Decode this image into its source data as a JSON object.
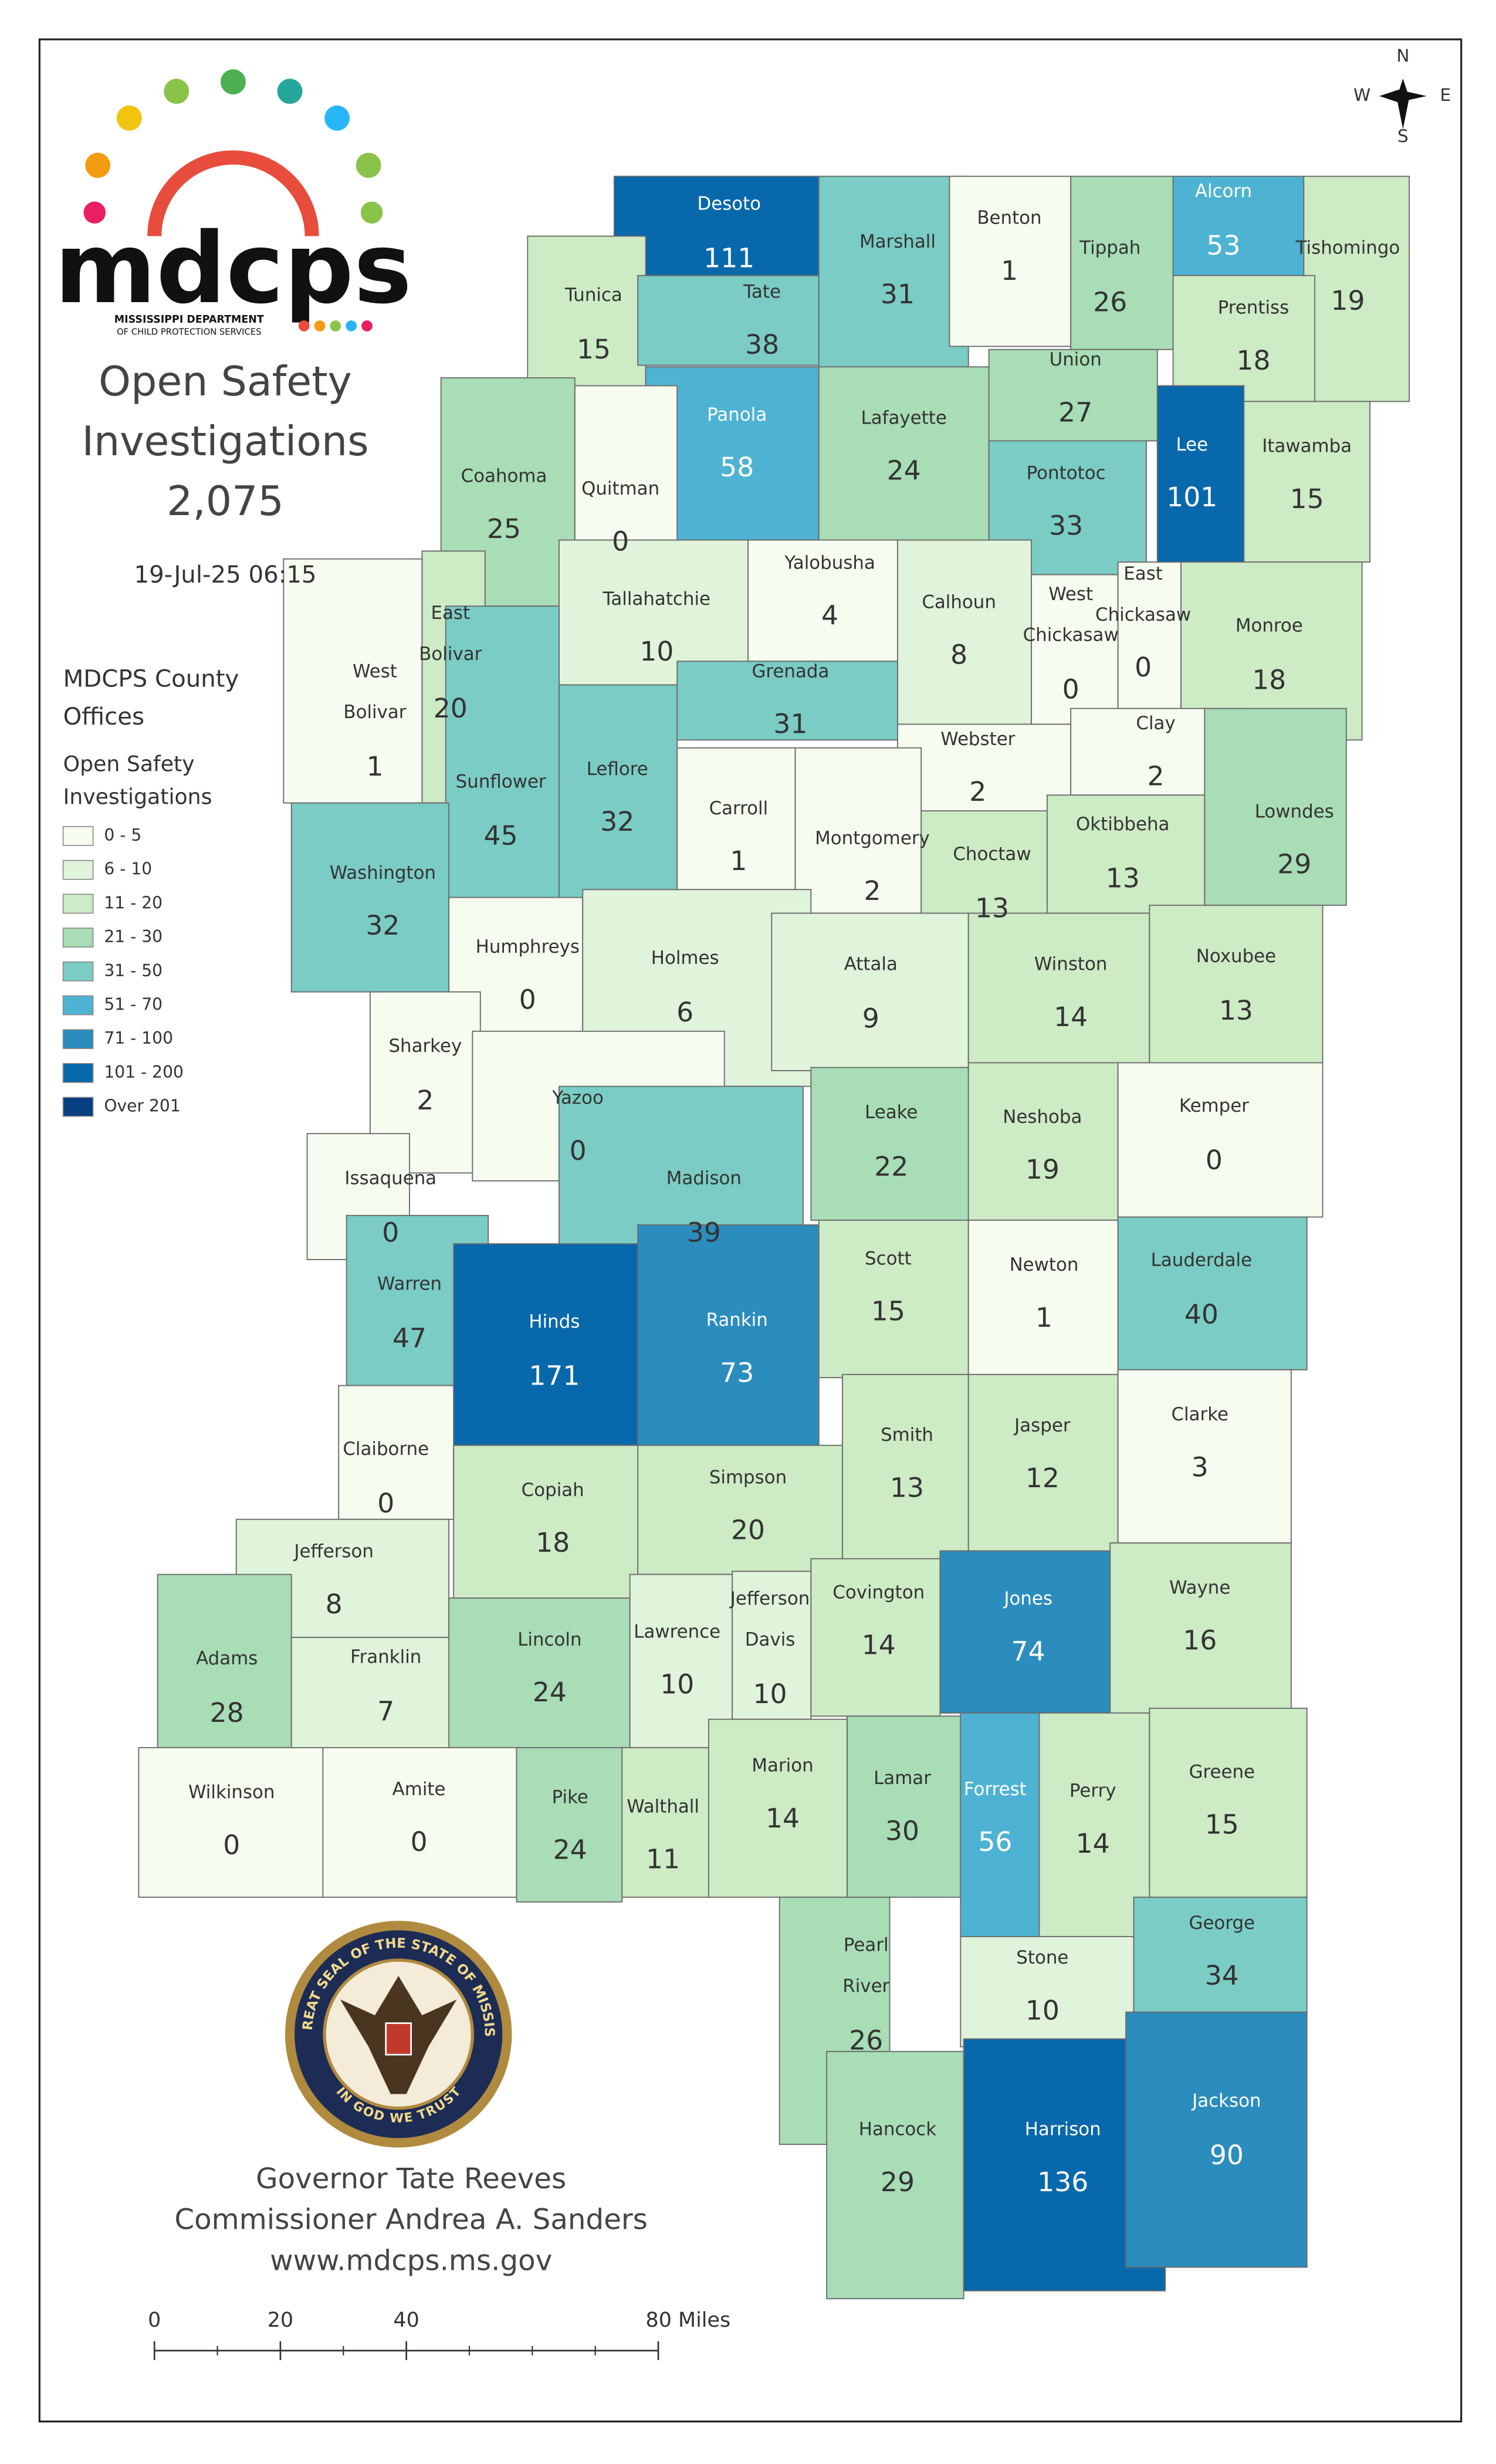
{
  "logo": {
    "text": "mdcps",
    "subtitle": [
      "MISSISSIPPI DEPARTMENT",
      "OF CHILD PROTECTION SERVICES"
    ]
  },
  "title": [
    "Open Safety",
    "Investigations"
  ],
  "total": {
    "value": 2075,
    "label": "2,075"
  },
  "timestamp": "19-Jul-25 06:15",
  "legend": {
    "heading": [
      "MDCPS County",
      "Offices"
    ],
    "subheading": [
      "Open Safety",
      "Investigations"
    ],
    "items": [
      {
        "label": "0 - 5",
        "min": 0,
        "max": 5,
        "color": "#f7fcf0"
      },
      {
        "label": "6 - 10",
        "min": 6,
        "max": 10,
        "color": "#e0f3db"
      },
      {
        "label": "11 - 20",
        "min": 11,
        "max": 20,
        "color": "#cdebc5"
      },
      {
        "label": "21 - 30",
        "min": 21,
        "max": 30,
        "color": "#a8ddb5"
      },
      {
        "label": "31 - 50",
        "min": 31,
        "max": 50,
        "color": "#7bccc4"
      },
      {
        "label": "51 - 70",
        "min": 51,
        "max": 70,
        "color": "#4eb3d3"
      },
      {
        "label": "71 - 100",
        "min": 71,
        "max": 100,
        "color": "#2b8cbe"
      },
      {
        "label": "101 - 200",
        "min": 101,
        "max": 200,
        "color": "#0868ac"
      },
      {
        "label": "Over 201",
        "min": 201,
        "color": "#084081"
      }
    ]
  },
  "counties": [
    {
      "name": [
        "Desoto"
      ],
      "value": 111
    },
    {
      "name": [
        "Tunica"
      ],
      "value": 15
    },
    {
      "name": [
        "Tate"
      ],
      "value": 38
    },
    {
      "name": [
        "Marshall"
      ],
      "value": 31
    },
    {
      "name": [
        "Benton"
      ],
      "value": 1
    },
    {
      "name": [
        "Tippah"
      ],
      "value": 26
    },
    {
      "name": [
        "Alcorn"
      ],
      "value": 53
    },
    {
      "name": [
        "Tishomingo"
      ],
      "value": 19
    },
    {
      "name": [
        "Prentiss"
      ],
      "value": 18
    },
    {
      "name": [
        "Union"
      ],
      "value": 27
    },
    {
      "name": [
        "Lee"
      ],
      "value": 101
    },
    {
      "name": [
        "Itawamba"
      ],
      "value": 15
    },
    {
      "name": [
        "Panola"
      ],
      "value": 58
    },
    {
      "name": [
        "Lafayette"
      ],
      "value": 24
    },
    {
      "name": [
        "Pontotoc"
      ],
      "value": 33
    },
    {
      "name": [
        "Quitman"
      ],
      "value": 0
    },
    {
      "name": [
        "Coahoma"
      ],
      "value": 25
    },
    {
      "name": [
        "Tallahatchie"
      ],
      "value": 10
    },
    {
      "name": [
        "Yalobusha"
      ],
      "value": 4
    },
    {
      "name": [
        "Calhoun"
      ],
      "value": 8
    },
    {
      "name": [
        "West",
        "Bolivar"
      ],
      "value": 1
    },
    {
      "name": [
        "East",
        "Bolivar"
      ],
      "value": 20
    },
    {
      "name": [
        "Sunflower"
      ],
      "value": 45
    },
    {
      "name": [
        "Leflore"
      ],
      "value": 32
    },
    {
      "name": [
        "Grenada"
      ],
      "value": 31
    },
    {
      "name": [
        "West",
        "Chickasaw"
      ],
      "value": 0
    },
    {
      "name": [
        "East",
        "Chickasaw"
      ],
      "value": 0
    },
    {
      "name": [
        "Monroe"
      ],
      "value": 18
    },
    {
      "name": [
        "Webster"
      ],
      "value": 2
    },
    {
      "name": [
        "Clay"
      ],
      "value": 2
    },
    {
      "name": [
        "Lowndes"
      ],
      "value": 29
    },
    {
      "name": [
        "Carroll"
      ],
      "value": 1
    },
    {
      "name": [
        "Montgomery"
      ],
      "value": 2
    },
    {
      "name": [
        "Choctaw"
      ],
      "value": 13
    },
    {
      "name": [
        "Oktibbeha"
      ],
      "value": 13
    },
    {
      "name": [
        "Washington"
      ],
      "value": 32
    },
    {
      "name": [
        "Humphreys"
      ],
      "value": 0
    },
    {
      "name": [
        "Holmes"
      ],
      "value": 6
    },
    {
      "name": [
        "Attala"
      ],
      "value": 9
    },
    {
      "name": [
        "Winston"
      ],
      "value": 14
    },
    {
      "name": [
        "Noxubee"
      ],
      "value": 13
    },
    {
      "name": [
        "Sharkey"
      ],
      "value": 2
    },
    {
      "name": [
        "Yazoo"
      ],
      "value": 0
    },
    {
      "name": [
        "Leake"
      ],
      "value": 22
    },
    {
      "name": [
        "Neshoba"
      ],
      "value": 19
    },
    {
      "name": [
        "Kemper"
      ],
      "value": 0
    },
    {
      "name": [
        "Issaquena"
      ],
      "value": 0
    },
    {
      "name": [
        "Madison"
      ],
      "value": 39
    },
    {
      "name": [
        "Warren"
      ],
      "value": 47
    },
    {
      "name": [
        "Hinds"
      ],
      "value": 171
    },
    {
      "name": [
        "Rankin"
      ],
      "value": 73
    },
    {
      "name": [
        "Scott"
      ],
      "value": 15
    },
    {
      "name": [
        "Newton"
      ],
      "value": 1
    },
    {
      "name": [
        "Lauderdale"
      ],
      "value": 40
    },
    {
      "name": [
        "Claiborne"
      ],
      "value": 0
    },
    {
      "name": [
        "Copiah"
      ],
      "value": 18
    },
    {
      "name": [
        "Simpson"
      ],
      "value": 20
    },
    {
      "name": [
        "Smith"
      ],
      "value": 13
    },
    {
      "name": [
        "Jasper"
      ],
      "value": 12
    },
    {
      "name": [
        "Clarke"
      ],
      "value": 3
    },
    {
      "name": [
        "Jefferson"
      ],
      "value": 8
    },
    {
      "name": [
        "Adams"
      ],
      "value": 28
    },
    {
      "name": [
        "Franklin"
      ],
      "value": 7
    },
    {
      "name": [
        "Lincoln"
      ],
      "value": 24
    },
    {
      "name": [
        "Lawrence"
      ],
      "value": 10
    },
    {
      "name": [
        "Jefferson",
        "Davis"
      ],
      "value": 10
    },
    {
      "name": [
        "Covington"
      ],
      "value": 14
    },
    {
      "name": [
        "Jones"
      ],
      "value": 74
    },
    {
      "name": [
        "Wayne"
      ],
      "value": 16
    },
    {
      "name": [
        "Wilkinson"
      ],
      "value": 0
    },
    {
      "name": [
        "Amite"
      ],
      "value": 0
    },
    {
      "name": [
        "Pike"
      ],
      "value": 24
    },
    {
      "name": [
        "Walthall"
      ],
      "value": 11
    },
    {
      "name": [
        "Marion"
      ],
      "value": 14
    },
    {
      "name": [
        "Lamar"
      ],
      "value": 30
    },
    {
      "name": [
        "Forrest"
      ],
      "value": 56
    },
    {
      "name": [
        "Perry"
      ],
      "value": 14
    },
    {
      "name": [
        "Greene"
      ],
      "value": 15
    },
    {
      "name": [
        "Pearl",
        "River"
      ],
      "value": 26
    },
    {
      "name": [
        "Stone"
      ],
      "value": 10
    },
    {
      "name": [
        "George"
      ],
      "value": 34
    },
    {
      "name": [
        "Hancock"
      ],
      "value": 29
    },
    {
      "name": [
        "Harrison"
      ],
      "value": 136
    },
    {
      "name": [
        "Jackson"
      ],
      "value": 90
    }
  ],
  "seal": {
    "ring": "THE GREAT SEAL OF THE STATE OF MISSISSIPPI",
    "motto": "IN GOD WE TRUST"
  },
  "footer": [
    "Governor Tate Reeves",
    "Commissioner Andrea A. Sanders",
    "www.mdcps.ms.gov"
  ],
  "scale": {
    "ticks": [
      0,
      20,
      40,
      {
        "value": 80,
        "label": "80 Miles"
      }
    ]
  },
  "compass": {
    "n": "N",
    "s": "S",
    "e": "E",
    "w": "W"
  }
}
